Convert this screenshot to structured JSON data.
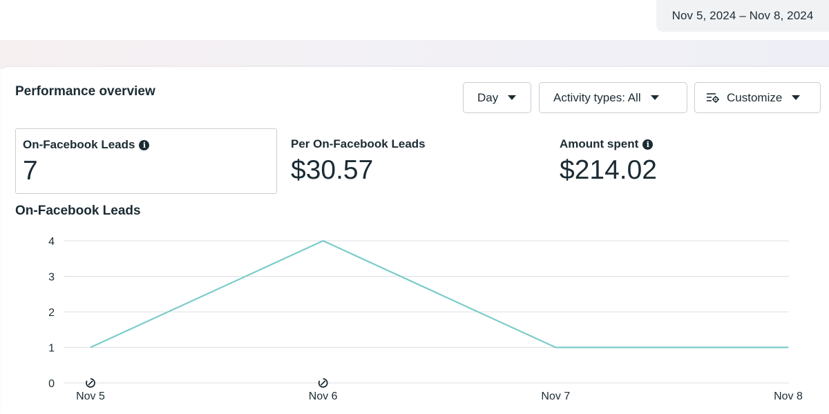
{
  "header": {
    "date_range": "Nov 5, 2024 – Nov 8, 2024"
  },
  "performance": {
    "title": "Performance overview",
    "controls": {
      "day_label": "Day",
      "activity_label": "Activity types: All",
      "customize_label": "Customize"
    },
    "metrics": [
      {
        "label": "On-Facebook Leads",
        "value": "7",
        "has_info": true,
        "selected": true
      },
      {
        "label": "Per On-Facebook Leads",
        "value": "$30.57",
        "has_info": false,
        "selected": false
      },
      {
        "label": "Amount spent",
        "value": "$214.02",
        "has_info": true,
        "selected": false
      }
    ]
  },
  "chart_data": {
    "type": "line",
    "title": "On-Facebook Leads",
    "categories": [
      "Nov 5",
      "Nov 6",
      "Nov 7",
      "Nov 8"
    ],
    "series": [
      {
        "values": [
          1,
          4,
          1,
          1
        ],
        "color": "#7accc8"
      }
    ],
    "yticks": [
      0,
      1,
      2,
      3,
      4
    ],
    "ylim": [
      0,
      4
    ],
    "grid": true,
    "markers_on": [
      "Nov 5",
      "Nov 6"
    ],
    "marker_icon": "edit-history-icon"
  }
}
